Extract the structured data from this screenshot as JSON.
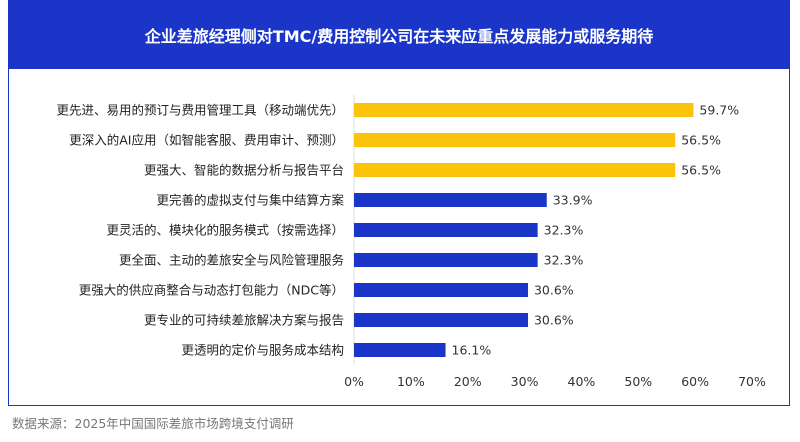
{
  "chart_data": {
    "type": "bar",
    "orientation": "horizontal",
    "title": "企业差旅经理侧对TMC/费用控制公司在未来应重点发展能力或服务期待",
    "categories": [
      "更先进、易用的预订与费用管理工具（移动端优先）",
      "更深入的AI应用（如智能客服、费用审计、预测）",
      "更强大、智能的数据分析与报告平台",
      "更完善的虚拟支付与集中结算方案",
      "更灵活的、模块化的服务模式（按需选择）",
      "更全面、主动的差旅安全与风险管理服务",
      "更强大的供应商整合与动态打包能力（NDC等）",
      "更专业的可持续差旅解决方案与报告",
      "更透明的定价与服务成本结构"
    ],
    "values": [
      59.7,
      56.5,
      56.5,
      33.9,
      32.3,
      32.3,
      30.6,
      30.6,
      16.1
    ],
    "labels": [
      "59.7%",
      "56.5%",
      "56.5%",
      "33.9%",
      "32.3%",
      "32.3%",
      "30.6%",
      "30.6%",
      "16.1%"
    ],
    "highlight": [
      true,
      true,
      true,
      false,
      false,
      false,
      false,
      false,
      false
    ],
    "xlim": [
      0,
      70
    ],
    "xticks": [
      "0%",
      "10%",
      "20%",
      "30%",
      "40%",
      "50%",
      "60%",
      "70%"
    ],
    "colors": {
      "highlight": "#fcc30b",
      "normal": "#1a35c8"
    },
    "grid": false
  },
  "source": "数据来源：2025年中国国际差旅市场跨境支付调研"
}
